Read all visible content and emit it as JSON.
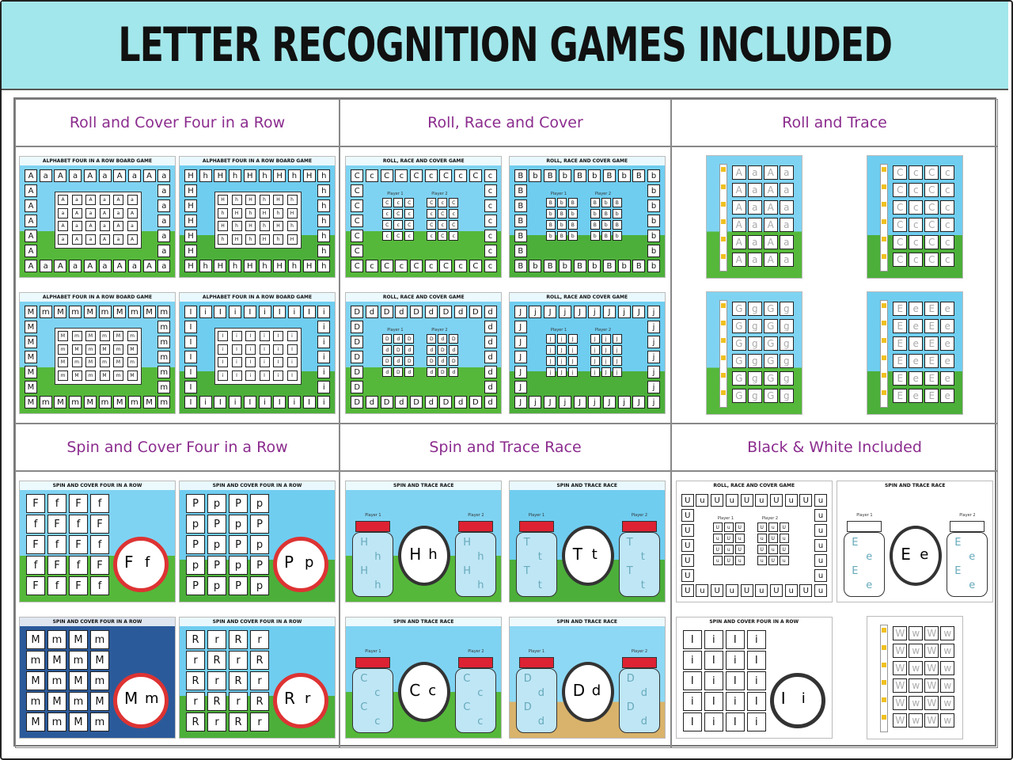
{
  "header": {
    "title": "LETTER RECOGNITION GAMES INCLUDED"
  },
  "player_labels": [
    "Player 1",
    "Player 2"
  ],
  "sections": [
    {
      "title": "Roll and Cover Four in a Row",
      "thumbnails": [
        {
          "heading": "ALPHABET FOUR IN A ROW BOARD GAME",
          "upper": "A",
          "lower": "a"
        },
        {
          "heading": "ALPHABET FOUR IN A ROW BOARD GAME",
          "upper": "H",
          "lower": "h"
        },
        {
          "heading": "ALPHABET FOUR IN A ROW BOARD GAME",
          "upper": "M",
          "lower": "m"
        },
        {
          "heading": "ALPHABET FOUR IN A ROW BOARD GAME",
          "upper": "I",
          "lower": "i"
        }
      ]
    },
    {
      "title": "Roll, Race and Cover",
      "thumbnails": [
        {
          "heading": "ROLL, RACE AND COVER GAME",
          "upper": "C",
          "lower": "c"
        },
        {
          "heading": "ROLL, RACE AND COVER GAME",
          "upper": "B",
          "lower": "b"
        },
        {
          "heading": "ROLL, RACE AND COVER GAME",
          "upper": "D",
          "lower": "d"
        },
        {
          "heading": "ROLL, RACE AND COVER GAME",
          "upper": "J",
          "lower": "j"
        }
      ]
    },
    {
      "title": "Roll and Trace",
      "thumbnails": [
        {
          "upper": "A",
          "lower": "a"
        },
        {
          "upper": "C",
          "lower": "c"
        },
        {
          "upper": "G",
          "lower": "g"
        },
        {
          "upper": "E",
          "lower": "e"
        }
      ]
    },
    {
      "title": "Spin and Cover Four in a Row",
      "thumbnails": [
        {
          "heading": "SPIN AND COVER FOUR IN A ROW",
          "upper": "F",
          "lower": "f"
        },
        {
          "heading": "SPIN AND COVER FOUR IN A ROW",
          "upper": "P",
          "lower": "p"
        },
        {
          "heading": "SPIN AND COVER FOUR IN A ROW",
          "upper": "M",
          "lower": "m"
        },
        {
          "heading": "SPIN AND COVER FOUR IN A ROW",
          "upper": "R",
          "lower": "r"
        }
      ]
    },
    {
      "title": "Spin and Trace Race",
      "thumbnails": [
        {
          "heading": "SPIN AND TRACE RACE",
          "upper": "H",
          "lower": "h"
        },
        {
          "heading": "SPIN AND TRACE RACE",
          "upper": "T",
          "lower": "t"
        },
        {
          "heading": "SPIN AND TRACE RACE",
          "upper": "C",
          "lower": "c"
        },
        {
          "heading": "SPIN AND TRACE RACE",
          "upper": "D",
          "lower": "d"
        }
      ]
    },
    {
      "title": "Black & White Included",
      "thumbnails": [
        {
          "heading": "ROLL, RACE AND COVER GAME",
          "upper": "U",
          "lower": "u"
        },
        {
          "heading": "SPIN AND TRACE RACE",
          "upper": "E",
          "lower": "e"
        },
        {
          "heading": "SPIN AND COVER FOUR IN A ROW",
          "upper": "I",
          "lower": "i"
        },
        {
          "upper": "W",
          "lower": "w"
        }
      ]
    }
  ]
}
